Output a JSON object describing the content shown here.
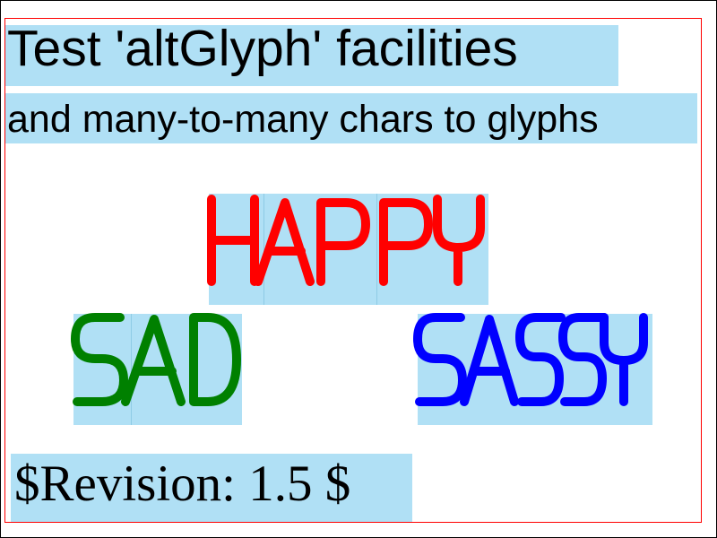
{
  "title": "Test 'altGlyph' facilities",
  "subtitle": "and many-to-many chars to glyphs",
  "words": {
    "happy": {
      "text": "HAPPY",
      "color": "#ff0000"
    },
    "sad": {
      "text": "SAD",
      "color": "#008000"
    },
    "sassy": {
      "text": "SASSY",
      "color": "#0000ff"
    }
  },
  "revision": "$Revision: 1.5 $",
  "colors": {
    "highlight": "#b0e0f5",
    "frame": "#ff0000",
    "border": "#000000"
  }
}
